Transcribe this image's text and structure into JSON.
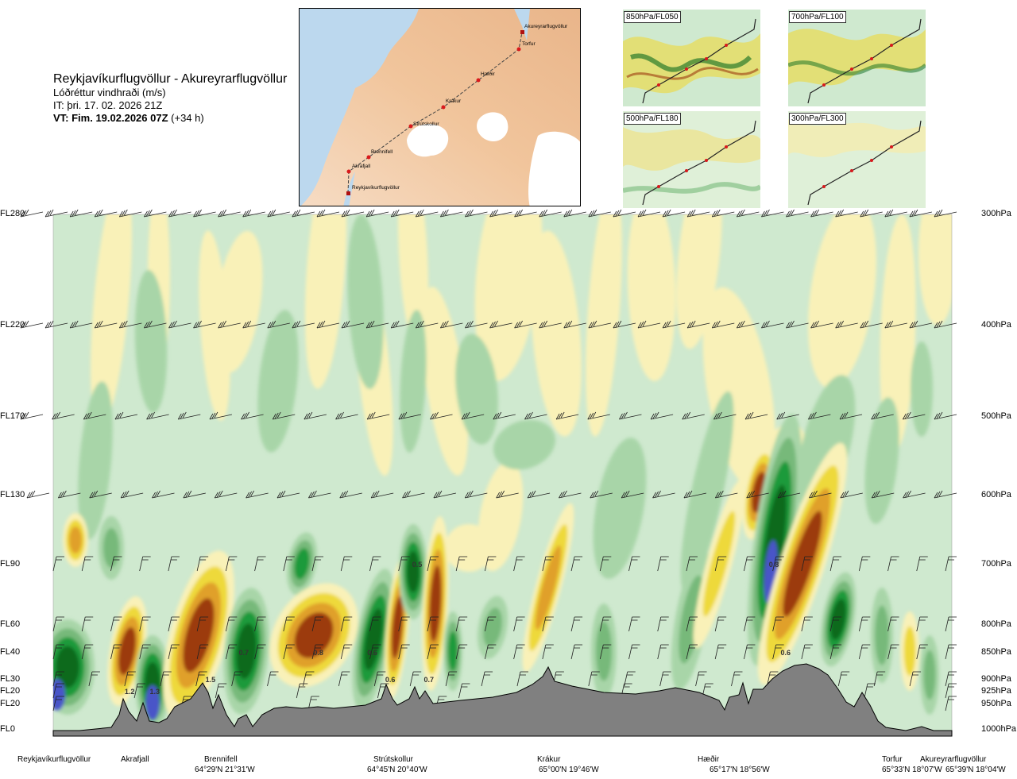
{
  "header": {
    "title": "Reykjavíkurflugvöllur - Akureyrarflugvöllur",
    "subtitle": "Lóðréttur vindhraði (m/s)",
    "issue_time": "IT: þri. 17. 02. 2026 21Z",
    "valid_time_bold": "VT: Fim. 19.02.2026 07Z",
    "valid_time_offset": "(+34 h)"
  },
  "route_map": {
    "points": [
      "Akureyrarflugvöllur",
      "Torfur",
      "Hæðir",
      "Krákur",
      "Strútskollur",
      "Brennifell",
      "Akrafjall",
      "Reykjavíkurflugvöllur"
    ]
  },
  "mini_maps": [
    {
      "label": "850hPa/FL050"
    },
    {
      "label": "700hPa/FL100"
    },
    {
      "label": "500hPa/FL180"
    },
    {
      "label": "300hPa/FL300"
    }
  ],
  "chart_data": {
    "type": "heatmap",
    "title": "Lóðréttur vindhraði (m/s)",
    "left_axis_levels": [
      "FL280",
      "FL220",
      "FL170",
      "FL130",
      "FL90",
      "FL60",
      "FL40",
      "FL30",
      "FL20",
      "FL20",
      "FL0"
    ],
    "right_axis_levels": [
      "300hPa",
      "400hPa",
      "500hPa",
      "600hPa",
      "700hPa",
      "800hPa",
      "850hPa",
      "900hPa",
      "925hPa",
      "950hPa",
      "1000hPa"
    ],
    "waypoints": [
      {
        "name": "Reykjavíkurflugvöllur",
        "coord": ""
      },
      {
        "name": "Akrafjall",
        "coord": ""
      },
      {
        "name": "Brennifell",
        "coord": "64°29'N 21°31'W"
      },
      {
        "name": "Strútskollur",
        "coord": "64°45'N 20°40'W"
      },
      {
        "name": "Krákur",
        "coord": "65°00'N 19°46'W"
      },
      {
        "name": "Hæðir",
        "coord": "65°17'N 18°56'W"
      },
      {
        "name": "Torfur",
        "coord": "65°33'N 18°07'W"
      },
      {
        "name": "Akureyrarflugvöllur",
        "coord": "65°39'N 18°04'W"
      }
    ],
    "value_labels": [
      {
        "text": "1.2",
        "distance": 0.085,
        "level": "FL20"
      },
      {
        "text": "1.3",
        "distance": 0.113,
        "level": "FL20"
      },
      {
        "text": "1.5",
        "distance": 0.175,
        "level": "FL30"
      },
      {
        "text": "0.7",
        "distance": 0.212,
        "level": "FL40"
      },
      {
        "text": "0.8",
        "distance": 0.295,
        "level": "FL40"
      },
      {
        "text": "0.6",
        "distance": 0.355,
        "level": "FL40"
      },
      {
        "text": "0.6",
        "distance": 0.375,
        "level": "FL30"
      },
      {
        "text": "0.7",
        "distance": 0.418,
        "level": "FL30"
      },
      {
        "text": "0.5",
        "distance": 0.405,
        "level": "FL90"
      },
      {
        "text": "0.8",
        "distance": 0.802,
        "level": "FL90"
      },
      {
        "text": "0.6",
        "distance": 0.815,
        "level": "FL40"
      }
    ],
    "colors": {
      "dark_blue": "#4a55c8",
      "dark_green": "#0b6b1e",
      "green": "#1f9a3a",
      "mid_green": "#77b97a",
      "light_green": "#a8d5a8",
      "pale_green": "#cfe9cf",
      "pale_yellow": "#f9f1b8",
      "yellow": "#eed93a",
      "orange": "#e0a02c",
      "brown": "#9c3b0f",
      "terrain": "#808080"
    }
  }
}
